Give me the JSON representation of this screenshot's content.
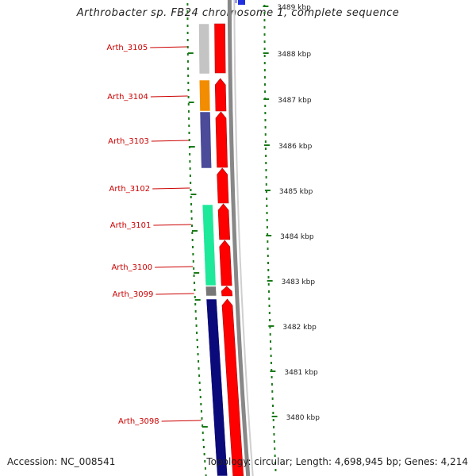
{
  "title": "Arthrobacter sp. FB24 chromosome 1, complete sequence",
  "footer": {
    "accession": "Accession: NC_008541",
    "summary": "Topology: circular; Length: 4,698,945 bp; Genes: 4,214"
  },
  "colors": {
    "cds_strand": "#ff0000",
    "label": "#cc0000",
    "tick": "#1a7a1a",
    "backbone": "#888888"
  },
  "scale_ticks": [
    {
      "label": "3489 kbp"
    },
    {
      "label": "3488 kbp"
    },
    {
      "label": "3487 kbp"
    },
    {
      "label": "3486 kbp"
    },
    {
      "label": "3485 kbp"
    },
    {
      "label": "3484 kbp"
    },
    {
      "label": "3483 kbp"
    },
    {
      "label": "3482 kbp"
    },
    {
      "label": "3481 kbp"
    },
    {
      "label": "3480 kbp"
    }
  ],
  "genes": [
    {
      "name": "Arth_3105",
      "color": "#c4c4c4"
    },
    {
      "name": "Arth_3104",
      "color": "#f28c00"
    },
    {
      "name": "Arth_3103",
      "color": "#4b4b9a"
    },
    {
      "name": "Arth_3102",
      "color": ""
    },
    {
      "name": "Arth_3101",
      "color": "#1ee89a"
    },
    {
      "name": "Arth_3100",
      "color": "#1ee89a"
    },
    {
      "name": "Arth_3099",
      "color": "#777777"
    },
    {
      "name": "Arth_3098",
      "color": "#0a0a7a"
    }
  ]
}
